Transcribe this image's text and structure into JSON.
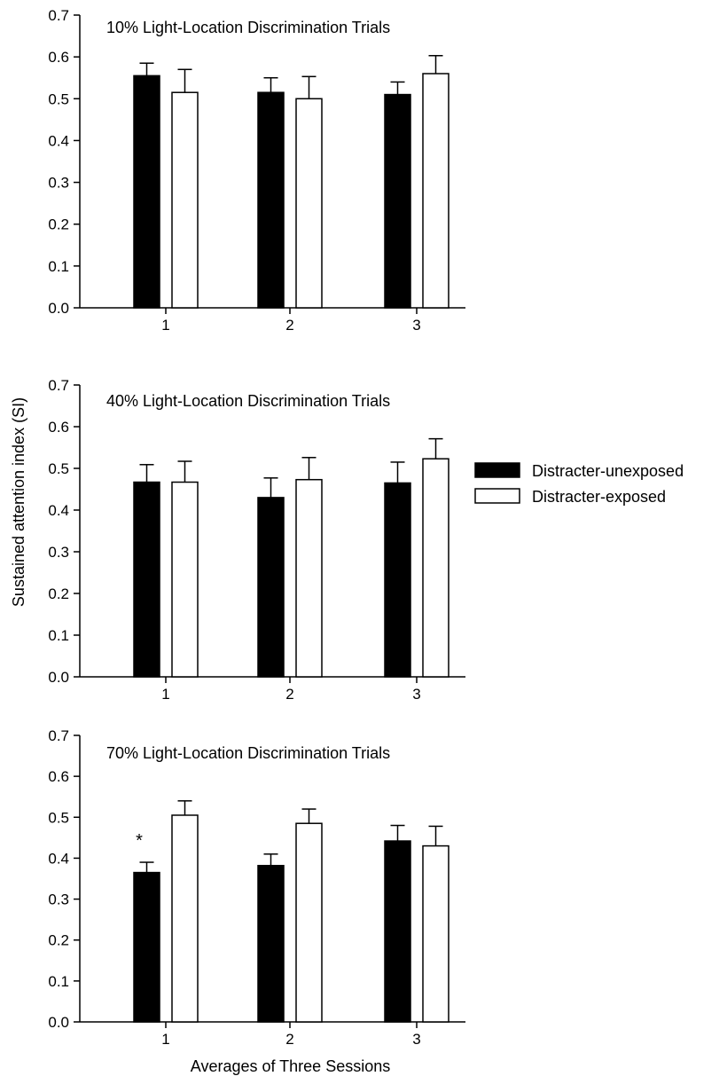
{
  "chart_data": [
    {
      "type": "bar",
      "title": "10% Light-Location Discrimination Trials",
      "categories": [
        "1",
        "2",
        "3"
      ],
      "series": [
        {
          "name": "Distracter-unexposed",
          "values": [
            0.555,
            0.515,
            0.51
          ],
          "errors": [
            0.03,
            0.035,
            0.03
          ]
        },
        {
          "name": "Distracter-exposed",
          "values": [
            0.515,
            0.5,
            0.56
          ],
          "errors": [
            0.055,
            0.053,
            0.043
          ]
        }
      ],
      "ylim": [
        0,
        0.7
      ],
      "yticks": [
        "0.0",
        "0.1",
        "0.2",
        "0.3",
        "0.4",
        "0.5",
        "0.6",
        "0.7"
      ],
      "xlabel": "",
      "annotations": []
    },
    {
      "type": "bar",
      "title": "40% Light-Location Discrimination Trials",
      "categories": [
        "1",
        "2",
        "3"
      ],
      "series": [
        {
          "name": "Distracter-unexposed",
          "values": [
            0.467,
            0.43,
            0.465
          ],
          "errors": [
            0.042,
            0.047,
            0.05
          ]
        },
        {
          "name": "Distracter-exposed",
          "values": [
            0.467,
            0.473,
            0.523
          ],
          "errors": [
            0.05,
            0.053,
            0.048
          ]
        }
      ],
      "ylim": [
        0,
        0.7
      ],
      "yticks": [
        "0.0",
        "0.1",
        "0.2",
        "0.3",
        "0.4",
        "0.5",
        "0.6",
        "0.7"
      ],
      "xlabel": "",
      "annotations": []
    },
    {
      "type": "bar",
      "title": "70% Light-Location Discrimination Trials",
      "categories": [
        "1",
        "2",
        "3"
      ],
      "series": [
        {
          "name": "Distracter-unexposed",
          "values": [
            0.365,
            0.382,
            0.442
          ],
          "errors": [
            0.025,
            0.028,
            0.038
          ]
        },
        {
          "name": "Distracter-exposed",
          "values": [
            0.505,
            0.485,
            0.43
          ],
          "errors": [
            0.035,
            0.035,
            0.048
          ]
        }
      ],
      "ylim": [
        0,
        0.7
      ],
      "yticks": [
        "0.0",
        "0.1",
        "0.2",
        "0.3",
        "0.4",
        "0.5",
        "0.6",
        "0.7"
      ],
      "xlabel": "Averages of Three Sessions",
      "annotations": [
        {
          "text": "*",
          "category": "1",
          "series": "Distracter-unexposed"
        }
      ]
    }
  ],
  "ylabel": "Sustained attention index (SI)",
  "legend": {
    "placement": "right",
    "items": [
      {
        "label": "Distracter-unexposed",
        "fill": "#000000"
      },
      {
        "label": "Distracter-exposed",
        "fill": "#ffffff"
      }
    ]
  },
  "colors": {
    "unexposed": "#000000",
    "exposed": "#ffffff",
    "stroke": "#000000"
  }
}
